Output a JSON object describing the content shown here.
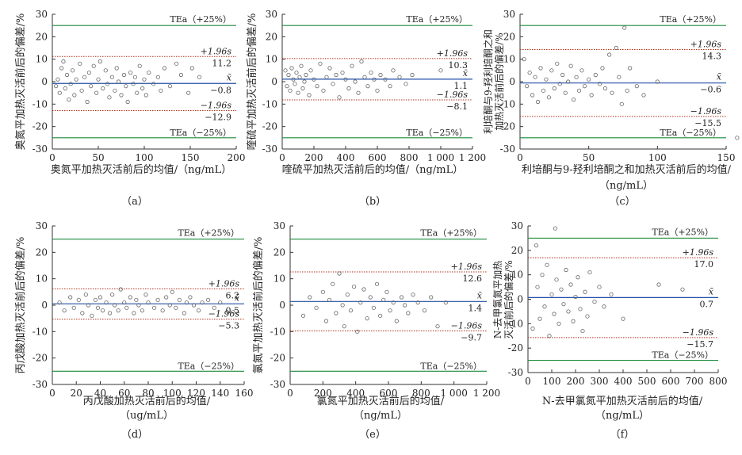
{
  "figure": {
    "colors": {
      "tea_line": "#1a8a3a",
      "sd_line": "#b03018",
      "mean_line": "#2450a8",
      "points": "#666666",
      "axis": "#333333",
      "text": "#222222"
    },
    "markers": "open-circle"
  },
  "chart_data": [
    {
      "panel": "（a）",
      "type": "scatter",
      "xlabel": "奥氮平加热灭活前后的均值/（ng/mL）",
      "ylabel": "奥氮平加热灭活前后的偏差/%",
      "xlim": [
        0,
        200
      ],
      "xticks": [
        0,
        50,
        100,
        150,
        200
      ],
      "ylim": [
        -30,
        30
      ],
      "yticks": [
        -30,
        -20,
        -10,
        0,
        10,
        20,
        30
      ],
      "lines": {
        "tea_upper": 25,
        "tea_lower": -25,
        "upper": 11.2,
        "mean": -0.8,
        "lower": -12.9
      },
      "labels": {
        "tea_upper": "TEa（+25%）",
        "tea_lower": "TEa（−25%）",
        "upper_tag": "+1.96s",
        "upper_value": "11.2",
        "mean_tag": "x̄",
        "mean_value": "−0.8",
        "lower_tag": "−1.96s",
        "lower_value": "−12.9"
      },
      "points": [
        [
          4,
          -2
        ],
        [
          6,
          1
        ],
        [
          8,
          -5
        ],
        [
          10,
          6
        ],
        [
          12,
          9
        ],
        [
          14,
          -3
        ],
        [
          16,
          3
        ],
        [
          18,
          -8
        ],
        [
          20,
          -1
        ],
        [
          22,
          5
        ],
        [
          24,
          -6
        ],
        [
          26,
          1
        ],
        [
          30,
          8
        ],
        [
          32,
          -4
        ],
        [
          35,
          2
        ],
        [
          38,
          -9
        ],
        [
          40,
          4
        ],
        [
          42,
          -2
        ],
        [
          45,
          7
        ],
        [
          48,
          -5
        ],
        [
          50,
          1
        ],
        [
          52,
          9
        ],
        [
          55,
          -3
        ],
        [
          58,
          5
        ],
        [
          60,
          -1
        ],
        [
          62,
          -7
        ],
        [
          65,
          2
        ],
        [
          68,
          -4
        ],
        [
          70,
          6
        ],
        [
          72,
          0
        ],
        [
          75,
          -6
        ],
        [
          78,
          3
        ],
        [
          80,
          -2
        ],
        [
          82,
          -9
        ],
        [
          85,
          4
        ],
        [
          88,
          -1
        ],
        [
          90,
          2
        ],
        [
          92,
          -5
        ],
        [
          95,
          7
        ],
        [
          98,
          -3
        ],
        [
          100,
          1
        ],
        [
          102,
          -6
        ],
        [
          105,
          4
        ],
        [
          110,
          -1
        ],
        [
          115,
          2
        ],
        [
          118,
          -4
        ],
        [
          122,
          6
        ],
        [
          128,
          -2
        ],
        [
          135,
          8
        ],
        [
          140,
          3
        ],
        [
          148,
          -5
        ],
        [
          152,
          6
        ],
        [
          160,
          2
        ]
      ]
    },
    {
      "panel": "（b）",
      "type": "scatter",
      "xlabel": "喹硫平加热灭活前后的均值/（ng/mL）",
      "ylabel": "喹硫平加热灭活前后的偏差/%",
      "xlim": [
        0,
        1200
      ],
      "xticks": [
        0,
        200,
        400,
        600,
        800,
        1000,
        1200
      ],
      "ylim": [
        -30,
        30
      ],
      "yticks": [
        -30,
        -20,
        -10,
        0,
        10,
        20,
        30
      ],
      "lines": {
        "tea_upper": 25,
        "tea_lower": -25,
        "upper": 10.3,
        "mean": 1.1,
        "lower": -8.1
      },
      "labels": {
        "tea_upper": "TEa（+25%）",
        "tea_lower": "TEa（−25%）",
        "upper_tag": "+1.96s",
        "upper_value": "10.3",
        "mean_tag": "x̄",
        "mean_value": "1.1",
        "lower_tag": "−1.96s",
        "lower_value": "−8.1"
      },
      "points": [
        [
          20,
          5
        ],
        [
          30,
          -2
        ],
        [
          40,
          3
        ],
        [
          50,
          -4
        ],
        [
          60,
          6
        ],
        [
          70,
          1
        ],
        [
          80,
          -1
        ],
        [
          90,
          4
        ],
        [
          100,
          -5
        ],
        [
          110,
          2
        ],
        [
          120,
          7
        ],
        [
          130,
          -3
        ],
        [
          140,
          0
        ],
        [
          150,
          3
        ],
        [
          170,
          -6
        ],
        [
          180,
          5
        ],
        [
          200,
          1
        ],
        [
          220,
          -2
        ],
        [
          240,
          8
        ],
        [
          260,
          -4
        ],
        [
          280,
          2
        ],
        [
          300,
          6
        ],
        [
          320,
          -1
        ],
        [
          340,
          3
        ],
        [
          360,
          -7
        ],
        [
          380,
          4
        ],
        [
          400,
          1
        ],
        [
          420,
          -3
        ],
        [
          440,
          7
        ],
        [
          460,
          0
        ],
        [
          480,
          -5
        ],
        [
          500,
          9
        ],
        [
          520,
          2
        ],
        [
          540,
          -2
        ],
        [
          560,
          4
        ],
        [
          580,
          1
        ],
        [
          600,
          -4
        ],
        [
          620,
          3
        ],
        [
          650,
          1
        ],
        [
          680,
          -2
        ],
        [
          700,
          5
        ],
        [
          740,
          2
        ],
        [
          780,
          -1
        ],
        [
          820,
          3
        ],
        [
          1000,
          5
        ]
      ]
    },
    {
      "panel": "（c）",
      "type": "scatter",
      "xlabel": "利培酮与9-羟利培酮之和加热灭活前后的均值/（ng/mL）",
      "ylabel": "利培酮与9-羟利培酮之和加热灭活前后的偏差/%",
      "xlim": [
        0,
        150
      ],
      "xticks": [
        0,
        50,
        100,
        150
      ],
      "ylim": [
        -30,
        30
      ],
      "yticks": [
        -30,
        -20,
        -10,
        0,
        10,
        20,
        30
      ],
      "lines": {
        "tea_upper": 25,
        "tea_lower": -25,
        "upper": 14.3,
        "mean": -0.6,
        "lower": -15.5
      },
      "labels": {
        "tea_upper": "TEa（+25%）",
        "tea_lower": "TEa（−25%）",
        "upper_tag": "+1.96s",
        "upper_value": "14.3",
        "mean_tag": "x̄",
        "mean_value": "−0.6",
        "lower_tag": "−1.96s",
        "lower_value": "−15.5"
      },
      "points": [
        [
          3,
          10
        ],
        [
          5,
          -2
        ],
        [
          7,
          4
        ],
        [
          9,
          -6
        ],
        [
          11,
          2
        ],
        [
          13,
          -9
        ],
        [
          15,
          6
        ],
        [
          17,
          -4
        ],
        [
          19,
          1
        ],
        [
          21,
          -7
        ],
        [
          23,
          5
        ],
        [
          25,
          -3
        ],
        [
          27,
          8
        ],
        [
          29,
          -1
        ],
        [
          31,
          3
        ],
        [
          33,
          -5
        ],
        [
          35,
          0
        ],
        [
          37,
          7
        ],
        [
          39,
          -8
        ],
        [
          41,
          2
        ],
        [
          43,
          -4
        ],
        [
          45,
          5
        ],
        [
          47,
          -2
        ],
        [
          50,
          1
        ],
        [
          52,
          -6
        ],
        [
          55,
          3
        ],
        [
          58,
          -1
        ],
        [
          60,
          6
        ],
        [
          62,
          -3
        ],
        [
          65,
          12
        ],
        [
          67,
          -5
        ],
        [
          70,
          15
        ],
        [
          72,
          2
        ],
        [
          74,
          -10
        ],
        [
          76,
          24
        ],
        [
          78,
          -4
        ],
        [
          80,
          6
        ],
        [
          85,
          -2
        ],
        [
          90,
          -6
        ],
        [
          100,
          0
        ],
        [
          158,
          -25
        ]
      ]
    },
    {
      "panel": "（d）",
      "type": "scatter",
      "xlabel": "丙戊酸加热灭活前后的均值/（ug/mL）",
      "ylabel": "丙戊酸加热灭活前后的偏差/%",
      "xlim": [
        0,
        160
      ],
      "xticks": [
        0,
        20,
        40,
        60,
        80,
        100,
        120,
        140,
        160
      ],
      "ylim": [
        -30,
        30
      ],
      "yticks": [
        -30,
        -20,
        -10,
        0,
        10,
        20,
        30
      ],
      "lines": {
        "tea_upper": 25,
        "tea_lower": -25,
        "upper": 6.2,
        "mean": 0.5,
        "lower": -5.3
      },
      "labels": {
        "tea_upper": "TEa（+25%）",
        "tea_lower": "TEa（−25%）",
        "upper_tag": "+1.96s",
        "upper_value": "6.2",
        "mean_tag": "x̄",
        "mean_value": "0.5",
        "lower_tag": "−1.96s",
        "lower_value": "−5.3"
      },
      "points": [
        [
          6,
          1
        ],
        [
          10,
          -2
        ],
        [
          15,
          3
        ],
        [
          18,
          -1
        ],
        [
          22,
          2
        ],
        [
          25,
          -3
        ],
        [
          28,
          4
        ],
        [
          30,
          0
        ],
        [
          33,
          -4
        ],
        [
          36,
          2
        ],
        [
          38,
          -1
        ],
        [
          40,
          3
        ],
        [
          42,
          -2
        ],
        [
          45,
          1
        ],
        [
          48,
          -3
        ],
        [
          50,
          4
        ],
        [
          52,
          0
        ],
        [
          55,
          -2
        ],
        [
          57,
          6
        ],
        [
          60,
          1
        ],
        [
          62,
          -1
        ],
        [
          65,
          3
        ],
        [
          68,
          -3
        ],
        [
          70,
          2
        ],
        [
          72,
          0
        ],
        [
          75,
          -2
        ],
        [
          78,
          4
        ],
        [
          80,
          1
        ],
        [
          85,
          -1
        ],
        [
          88,
          2
        ],
        [
          92,
          -2
        ],
        [
          95,
          3
        ],
        [
          98,
          0
        ],
        [
          100,
          5
        ],
        [
          103,
          -1
        ],
        [
          106,
          2
        ],
        [
          110,
          -3
        ],
        [
          112,
          1
        ],
        [
          115,
          3
        ],
        [
          118,
          0
        ],
        [
          122,
          -2
        ],
        [
          125,
          1
        ],
        [
          130,
          2
        ],
        [
          135,
          -1
        ],
        [
          140,
          1
        ]
      ]
    },
    {
      "panel": "（e）",
      "type": "scatter",
      "xlabel": "氯氮平加热灭活前后的均值/（ng/mL）",
      "ylabel": "氯氮平加热灭活前后的偏差/%",
      "xlim": [
        0,
        1200
      ],
      "xticks": [
        0,
        200,
        400,
        600,
        800,
        1000,
        1200
      ],
      "ylim": [
        -30,
        30
      ],
      "yticks": [
        -30,
        -20,
        -10,
        0,
        10,
        20,
        30
      ],
      "lines": {
        "tea_upper": 25,
        "tea_lower": -25,
        "upper": 12.6,
        "mean": 1.4,
        "lower": -9.7
      },
      "labels": {
        "tea_upper": "TEa（+25%）",
        "tea_lower": "TEa（−25%）",
        "upper_tag": "+1.96s",
        "upper_value": "12.6",
        "mean_tag": "x̄",
        "mean_value": "1.4",
        "lower_tag": "−1.96s",
        "lower_value": "−9.7"
      },
      "points": [
        [
          80,
          -4
        ],
        [
          120,
          3
        ],
        [
          160,
          -1
        ],
        [
          200,
          5
        ],
        [
          220,
          -6
        ],
        [
          240,
          2
        ],
        [
          260,
          8
        ],
        [
          280,
          -3
        ],
        [
          300,
          12
        ],
        [
          320,
          0
        ],
        [
          330,
          -8
        ],
        [
          350,
          4
        ],
        [
          370,
          -2
        ],
        [
          390,
          7
        ],
        [
          410,
          -10
        ],
        [
          430,
          1
        ],
        [
          450,
          6
        ],
        [
          470,
          -5
        ],
        [
          490,
          3
        ],
        [
          510,
          -1
        ],
        [
          530,
          8
        ],
        [
          550,
          -4
        ],
        [
          570,
          2
        ],
        [
          590,
          5
        ],
        [
          610,
          -2
        ],
        [
          630,
          1
        ],
        [
          650,
          -6
        ],
        [
          680,
          3
        ],
        [
          700,
          0
        ],
        [
          720,
          -3
        ],
        [
          750,
          4
        ],
        [
          780,
          1
        ],
        [
          820,
          -2
        ],
        [
          860,
          3
        ],
        [
          900,
          -8
        ],
        [
          950,
          1
        ]
      ]
    },
    {
      "panel": "（f）",
      "type": "scatter",
      "xlabel": "N-去甲氯氮平加热灭活前后的均值/（ng/mL）",
      "ylabel": "N-去甲氯氮平加热灭活前后的偏差/%",
      "xlim": [
        0,
        800
      ],
      "xticks": [
        0,
        100,
        200,
        300,
        400,
        500,
        600,
        700,
        800
      ],
      "ylim": [
        -30,
        30
      ],
      "yticks": [
        -30,
        -20,
        -10,
        0,
        10,
        20,
        30
      ],
      "lines": {
        "tea_upper": 25,
        "tea_lower": -25,
        "upper": 17.0,
        "mean": 0.7,
        "lower": -15.7
      },
      "labels": {
        "tea_upper": "TEa（+25%）",
        "tea_lower": "TEa（−25%）",
        "upper_tag": "+1.96s",
        "upper_value": "17.0",
        "mean_tag": "x̄",
        "mean_value": "0.7",
        "lower_tag": "−1.96s",
        "lower_value": "−15.7"
      },
      "points": [
        [
          20,
          -12
        ],
        [
          35,
          22
        ],
        [
          40,
          5
        ],
        [
          50,
          -8
        ],
        [
          60,
          10
        ],
        [
          70,
          -3
        ],
        [
          80,
          14
        ],
        [
          90,
          -15
        ],
        [
          100,
          2
        ],
        [
          110,
          -6
        ],
        [
          115,
          29
        ],
        [
          120,
          8
        ],
        [
          130,
          -10
        ],
        [
          140,
          4
        ],
        [
          150,
          -2
        ],
        [
          160,
          12
        ],
        [
          170,
          -5
        ],
        [
          180,
          6
        ],
        [
          190,
          -9
        ],
        [
          200,
          1
        ],
        [
          210,
          9
        ],
        [
          220,
          -4
        ],
        [
          230,
          -13
        ],
        [
          240,
          3
        ],
        [
          250,
          -7
        ],
        [
          260,
          11
        ],
        [
          280,
          -1
        ],
        [
          300,
          5
        ],
        [
          320,
          -3
        ],
        [
          350,
          2
        ],
        [
          400,
          -8
        ],
        [
          550,
          6
        ],
        [
          650,
          4
        ]
      ]
    }
  ]
}
